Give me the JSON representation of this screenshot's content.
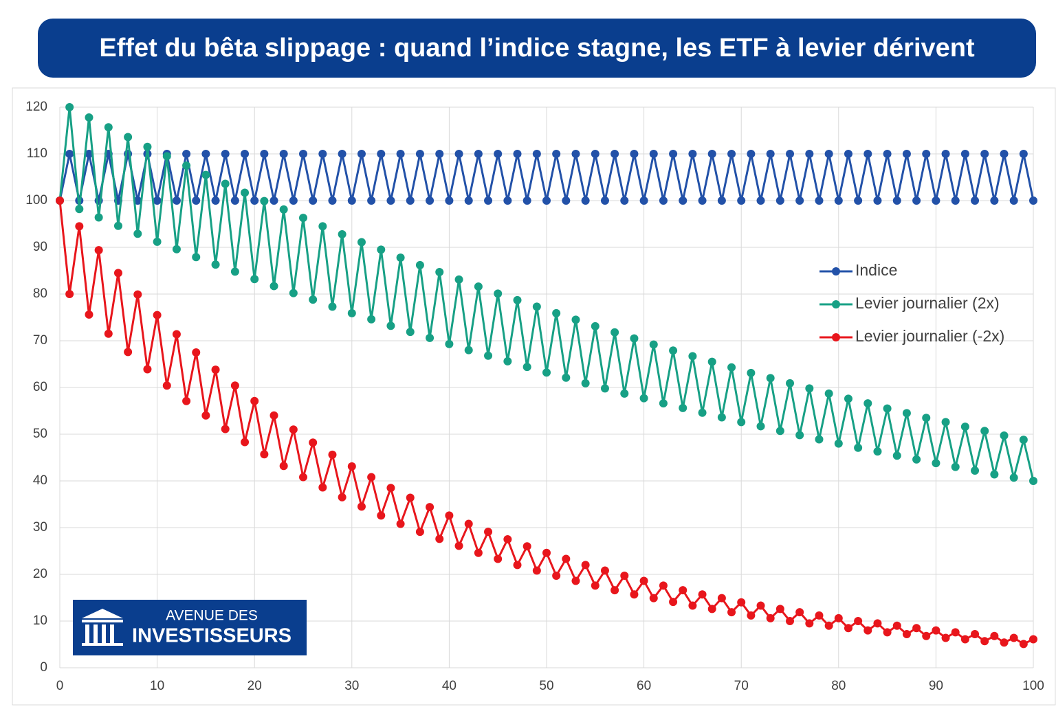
{
  "chart_data": {
    "type": "line",
    "title": "Effet du bêta slippage : quand l’indice stagne, les ETF à levier dérivent",
    "x": [
      0,
      1,
      2,
      3,
      4,
      5,
      6,
      7,
      8,
      9,
      10,
      11,
      12,
      13,
      14,
      15,
      16,
      17,
      18,
      19,
      20,
      21,
      22,
      23,
      24,
      25,
      26,
      27,
      28,
      29,
      30,
      31,
      32,
      33,
      34,
      35,
      36,
      37,
      38,
      39,
      40,
      41,
      42,
      43,
      44,
      45,
      46,
      47,
      48,
      49,
      50,
      51,
      52,
      53,
      54,
      55,
      56,
      57,
      58,
      59,
      60,
      61,
      62,
      63,
      64,
      65,
      66,
      67,
      68,
      69,
      70,
      71,
      72,
      73,
      74,
      75,
      76,
      77,
      78,
      79,
      80,
      81,
      82,
      83,
      84,
      85,
      86,
      87,
      88,
      89,
      90,
      91,
      92,
      93,
      94,
      95,
      96,
      97,
      98,
      99,
      100
    ],
    "series": [
      {
        "name": "Indice",
        "color": "#2251a8",
        "values": [
          100,
          110,
          100,
          110,
          100,
          110,
          100,
          110,
          100,
          110,
          100,
          110,
          100,
          110,
          100,
          110,
          100,
          110,
          100,
          110,
          100,
          110,
          100,
          110,
          100,
          110,
          100,
          110,
          100,
          110,
          100,
          110,
          100,
          110,
          100,
          110,
          100,
          110,
          100,
          110,
          100,
          110,
          100,
          110,
          100,
          110,
          100,
          110,
          100,
          110,
          100,
          110,
          100,
          110,
          100,
          110,
          100,
          110,
          100,
          110,
          100,
          110,
          100,
          110,
          100,
          110,
          100,
          110,
          100,
          110,
          100,
          110,
          100,
          110,
          100,
          110,
          100,
          110,
          100,
          110,
          100,
          110,
          100,
          110,
          100,
          110,
          100,
          110,
          100,
          110,
          100,
          110,
          100,
          110,
          100,
          110,
          100,
          110,
          100,
          110,
          100
        ]
      },
      {
        "name": "Levier journalier (2x)",
        "color": "#17a085",
        "values": [
          100,
          120,
          98.2,
          117.8,
          96.4,
          115.7,
          94.6,
          113.6,
          92.9,
          111.5,
          91.2,
          109.5,
          89.6,
          107.5,
          87.9,
          105.5,
          86.3,
          103.6,
          84.8,
          101.7,
          83.2,
          99.9,
          81.7,
          98.1,
          80.2,
          96.3,
          78.8,
          94.5,
          77.3,
          92.8,
          75.9,
          91.1,
          74.6,
          89.5,
          73.2,
          87.8,
          71.9,
          86.2,
          70.6,
          84.7,
          69.3,
          83.1,
          68.0,
          81.6,
          66.8,
          80.1,
          65.6,
          78.7,
          64.4,
          77.3,
          63.2,
          75.9,
          62.1,
          74.5,
          60.9,
          73.1,
          59.8,
          71.8,
          58.7,
          70.5,
          57.7,
          69.2,
          56.6,
          67.9,
          55.6,
          66.7,
          54.6,
          65.5,
          53.6,
          64.3,
          52.6,
          63.1,
          51.7,
          62.0,
          50.7,
          60.9,
          49.8,
          59.8,
          48.9,
          58.7,
          48.0,
          57.6,
          47.1,
          56.6,
          46.3,
          55.5,
          45.4,
          54.5,
          44.6,
          53.5,
          43.8,
          52.6,
          43.0,
          51.6,
          42.2,
          50.7,
          41.4,
          49.7,
          40.7,
          48.8,
          40.0
        ]
      },
      {
        "name": "Levier journalier (-2x)",
        "color": "#e8161c",
        "values": [
          100,
          80,
          94.5,
          75.6,
          89.4,
          71.5,
          84.5,
          67.6,
          79.9,
          63.9,
          75.5,
          60.4,
          71.4,
          57.1,
          67.5,
          54.0,
          63.8,
          51.1,
          60.4,
          48.3,
          57.1,
          45.7,
          54.0,
          43.2,
          51.0,
          40.8,
          48.2,
          38.6,
          45.6,
          36.5,
          43.1,
          34.5,
          40.8,
          32.6,
          38.5,
          30.8,
          36.4,
          29.1,
          34.4,
          27.6,
          32.6,
          26.1,
          30.8,
          24.6,
          29.1,
          23.3,
          27.5,
          22.0,
          26.0,
          20.8,
          24.6,
          19.7,
          23.3,
          18.6,
          22.0,
          17.6,
          20.8,
          16.6,
          19.7,
          15.7,
          18.6,
          14.9,
          17.6,
          14.1,
          16.6,
          13.3,
          15.7,
          12.6,
          14.9,
          11.9,
          14.0,
          11.2,
          13.3,
          10.6,
          12.6,
          10.0,
          11.9,
          9.5,
          11.2,
          9.0,
          10.6,
          8.5,
          10.0,
          8.0,
          9.5,
          7.6,
          9.0,
          7.2,
          8.5,
          6.8,
          8.0,
          6.4,
          7.6,
          6.1,
          7.2,
          5.7,
          6.8,
          5.4,
          6.4,
          5.1,
          6.1
        ]
      }
    ],
    "xlim": [
      0,
      100
    ],
    "xticks": [
      0,
      10,
      20,
      30,
      40,
      50,
      60,
      70,
      80,
      90,
      100
    ],
    "ylim": [
      0,
      120
    ],
    "yticks": [
      0,
      10,
      20,
      30,
      40,
      50,
      60,
      70,
      80,
      90,
      100,
      110,
      120
    ],
    "grid": true,
    "legend": "right"
  },
  "logo": {
    "line1": "AVENUE DES",
    "line2": "INVESTISSEURS"
  }
}
